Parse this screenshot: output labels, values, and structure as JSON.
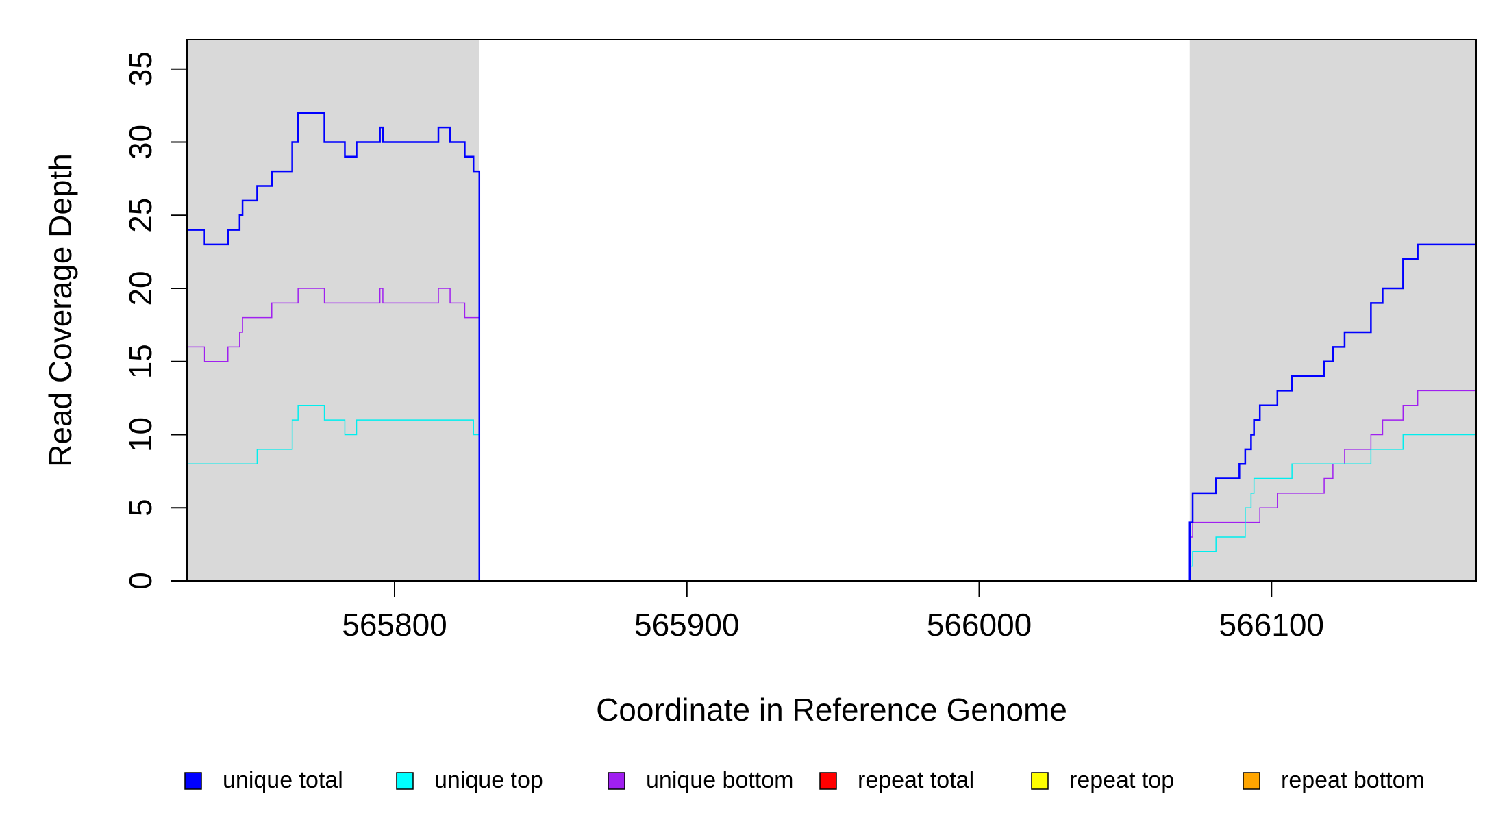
{
  "chart_data": {
    "type": "line",
    "title": "",
    "xlabel": "Coordinate in Reference Genome",
    "ylabel": "Read Coverage Depth",
    "xlim": [
      565729,
      566170
    ],
    "ylim": [
      0,
      37
    ],
    "x_ticks": [
      565800,
      565900,
      566000,
      566100
    ],
    "x_tick_labels": [
      "565800",
      "565900",
      "566000",
      "566100"
    ],
    "y_ticks": [
      0,
      5,
      10,
      15,
      20,
      25,
      30,
      35
    ],
    "y_tick_labels": [
      "0",
      "5",
      "10",
      "15",
      "20",
      "25",
      "30",
      "35"
    ],
    "grid": false,
    "legend_position": "bottom",
    "shaded_regions": [
      {
        "x0": 565729,
        "x1": 565829,
        "color": "#d9d9d9"
      },
      {
        "x0": 566072,
        "x1": 566170,
        "color": "#d9d9d9"
      }
    ],
    "series": [
      {
        "name": "unique total",
        "color": "#0000ff",
        "width": 2.5,
        "points": [
          [
            565729,
            24
          ],
          [
            565735,
            24
          ],
          [
            565735,
            23
          ],
          [
            565743,
            23
          ],
          [
            565743,
            24
          ],
          [
            565747,
            24
          ],
          [
            565747,
            25
          ],
          [
            565748,
            25
          ],
          [
            565748,
            26
          ],
          [
            565753,
            26
          ],
          [
            565753,
            27
          ],
          [
            565758,
            27
          ],
          [
            565758,
            28
          ],
          [
            565765,
            28
          ],
          [
            565765,
            30
          ],
          [
            565767,
            30
          ],
          [
            565767,
            32
          ],
          [
            565776,
            32
          ],
          [
            565776,
            30
          ],
          [
            565783,
            30
          ],
          [
            565783,
            29
          ],
          [
            565787,
            29
          ],
          [
            565787,
            30
          ],
          [
            565795,
            30
          ],
          [
            565795,
            31
          ],
          [
            565796,
            31
          ],
          [
            565796,
            30
          ],
          [
            565815,
            30
          ],
          [
            565815,
            31
          ],
          [
            565819,
            31
          ],
          [
            565819,
            30
          ],
          [
            565824,
            30
          ],
          [
            565824,
            29
          ],
          [
            565827,
            29
          ],
          [
            565827,
            28
          ],
          [
            565829,
            28
          ],
          [
            565829,
            0
          ],
          [
            566072,
            0
          ],
          [
            566072,
            4
          ],
          [
            566073,
            4
          ],
          [
            566073,
            6
          ],
          [
            566081,
            6
          ],
          [
            566081,
            7
          ],
          [
            566089,
            7
          ],
          [
            566089,
            8
          ],
          [
            566091,
            8
          ],
          [
            566091,
            9
          ],
          [
            566093,
            9
          ],
          [
            566093,
            10
          ],
          [
            566094,
            10
          ],
          [
            566094,
            11
          ],
          [
            566096,
            11
          ],
          [
            566096,
            12
          ],
          [
            566102,
            12
          ],
          [
            566102,
            13
          ],
          [
            566107,
            13
          ],
          [
            566107,
            14
          ],
          [
            566118,
            14
          ],
          [
            566118,
            15
          ],
          [
            566121,
            15
          ],
          [
            566121,
            16
          ],
          [
            566125,
            16
          ],
          [
            566125,
            17
          ],
          [
            566134,
            17
          ],
          [
            566134,
            19
          ],
          [
            566138,
            19
          ],
          [
            566138,
            20
          ],
          [
            566145,
            20
          ],
          [
            566145,
            22
          ],
          [
            566150,
            22
          ],
          [
            566150,
            23
          ],
          [
            566170,
            23
          ]
        ]
      },
      {
        "name": "unique top",
        "color": "#00eeee",
        "width": 1.5,
        "points": [
          [
            565729,
            8
          ],
          [
            565753,
            8
          ],
          [
            565753,
            9
          ],
          [
            565765,
            9
          ],
          [
            565765,
            11
          ],
          [
            565767,
            11
          ],
          [
            565767,
            12
          ],
          [
            565776,
            12
          ],
          [
            565776,
            11
          ],
          [
            565783,
            11
          ],
          [
            565783,
            10
          ],
          [
            565787,
            10
          ],
          [
            565787,
            11
          ],
          [
            565827,
            11
          ],
          [
            565827,
            10
          ],
          [
            565829,
            10
          ],
          [
            565829,
            0
          ],
          [
            566072,
            0
          ],
          [
            566072,
            1
          ],
          [
            566073,
            1
          ],
          [
            566073,
            2
          ],
          [
            566081,
            2
          ],
          [
            566081,
            3
          ],
          [
            566091,
            3
          ],
          [
            566091,
            5
          ],
          [
            566093,
            5
          ],
          [
            566093,
            6
          ],
          [
            566094,
            6
          ],
          [
            566094,
            7
          ],
          [
            566107,
            7
          ],
          [
            566107,
            8
          ],
          [
            566134,
            8
          ],
          [
            566134,
            9
          ],
          [
            566145,
            9
          ],
          [
            566145,
            10
          ],
          [
            566170,
            10
          ]
        ]
      },
      {
        "name": "unique bottom",
        "color": "#a020f0",
        "width": 1.5,
        "points": [
          [
            565729,
            16
          ],
          [
            565735,
            16
          ],
          [
            565735,
            15
          ],
          [
            565743,
            15
          ],
          [
            565743,
            16
          ],
          [
            565747,
            16
          ],
          [
            565747,
            17
          ],
          [
            565748,
            17
          ],
          [
            565748,
            18
          ],
          [
            565758,
            18
          ],
          [
            565758,
            19
          ],
          [
            565767,
            19
          ],
          [
            565767,
            20
          ],
          [
            565776,
            20
          ],
          [
            565776,
            19
          ],
          [
            565795,
            19
          ],
          [
            565795,
            20
          ],
          [
            565796,
            20
          ],
          [
            565796,
            19
          ],
          [
            565815,
            19
          ],
          [
            565815,
            20
          ],
          [
            565819,
            20
          ],
          [
            565819,
            19
          ],
          [
            565824,
            19
          ],
          [
            565824,
            18
          ],
          [
            565829,
            18
          ],
          [
            565829,
            0
          ],
          [
            566072,
            0
          ],
          [
            566072,
            3
          ],
          [
            566073,
            3
          ],
          [
            566073,
            4
          ],
          [
            566096,
            4
          ],
          [
            566096,
            5
          ],
          [
            566102,
            5
          ],
          [
            566102,
            6
          ],
          [
            566118,
            6
          ],
          [
            566118,
            7
          ],
          [
            566121,
            7
          ],
          [
            566121,
            8
          ],
          [
            566125,
            8
          ],
          [
            566125,
            9
          ],
          [
            566134,
            9
          ],
          [
            566134,
            10
          ],
          [
            566138,
            10
          ],
          [
            566138,
            11
          ],
          [
            566145,
            11
          ],
          [
            566145,
            12
          ],
          [
            566150,
            12
          ],
          [
            566150,
            13
          ],
          [
            566170,
            13
          ]
        ]
      },
      {
        "name": "repeat total",
        "color": "#ff0000",
        "width": 1.5,
        "points": [
          [
            565729,
            0
          ],
          [
            566170,
            0
          ]
        ]
      },
      {
        "name": "repeat top",
        "color": "#ffff00",
        "width": 1.5,
        "points": [
          [
            565729,
            0
          ],
          [
            566170,
            0
          ]
        ]
      },
      {
        "name": "repeat bottom",
        "color": "#ffa500",
        "width": 1.5,
        "points": [
          [
            565729,
            0
          ],
          [
            566170,
            0
          ]
        ]
      }
    ],
    "legend": [
      {
        "label": "unique total",
        "color": "#0000ff"
      },
      {
        "label": "unique top",
        "color": "#00ffff"
      },
      {
        "label": "unique bottom",
        "color": "#a020f0"
      },
      {
        "label": "repeat total",
        "color": "#ff0000"
      },
      {
        "label": "repeat top",
        "color": "#ffff00"
      },
      {
        "label": "repeat bottom",
        "color": "#ffa500"
      }
    ]
  }
}
